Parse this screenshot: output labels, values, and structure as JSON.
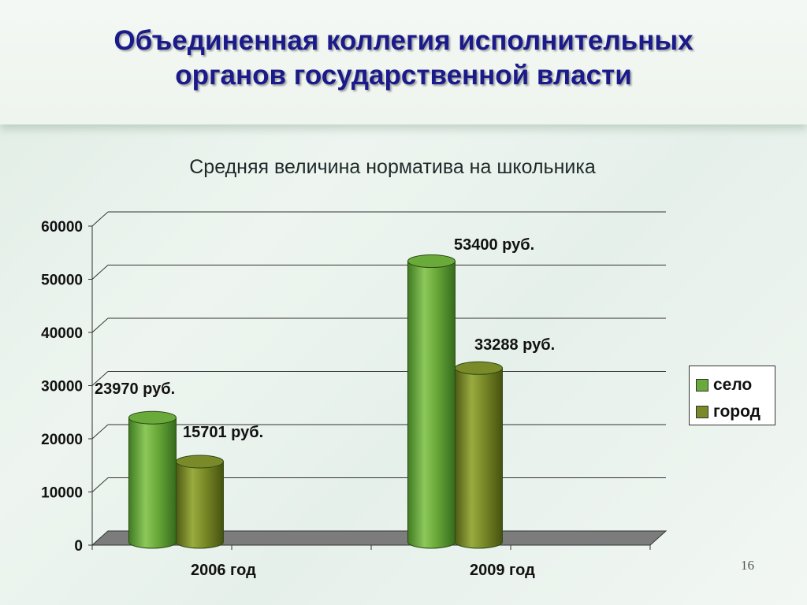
{
  "slide": {
    "title_line1": "Объединенная коллегия исполнительных",
    "title_line2": "органов государственной власти",
    "page_number": "16"
  },
  "chart_data": {
    "type": "bar",
    "title": "Средняя величина норматива на школьника",
    "categories": [
      "2006 год",
      "2009 год"
    ],
    "series": [
      {
        "name": "село",
        "values": [
          23970,
          53400
        ],
        "labels": [
          "23970 руб.",
          "53400  руб."
        ],
        "color": "#6aaa3a"
      },
      {
        "name": "город",
        "values": [
          15701,
          33288
        ],
        "labels": [
          "15701 руб.",
          "33288 руб."
        ],
        "color": "#7a8a28"
      }
    ],
    "ylim": [
      0,
      60000
    ],
    "yticks": [
      "0",
      "10000",
      "20000",
      "30000",
      "40000",
      "50000",
      "60000"
    ],
    "grid": true,
    "legend_position": "right",
    "style": "3d-cylinder"
  }
}
